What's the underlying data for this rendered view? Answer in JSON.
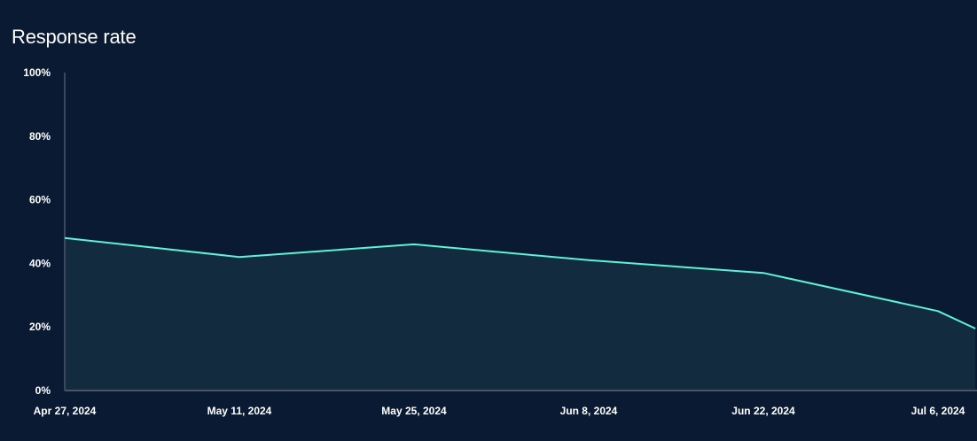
{
  "chart_data": {
    "type": "area",
    "title": "Response rate",
    "xlabel": "",
    "ylabel": "",
    "ylim": [
      0,
      100
    ],
    "y_ticks": [
      "0%",
      "20%",
      "40%",
      "60%",
      "80%",
      "100%"
    ],
    "y_tick_values": [
      0,
      20,
      40,
      60,
      80,
      100
    ],
    "x_ticks": [
      "Apr 27, 2024",
      "May 11, 2024",
      "May 25, 2024",
      "Jun 8, 2024",
      "Jun 22, 2024",
      "Jul 6, 2024"
    ],
    "x_tick_dates": [
      "2024-04-27",
      "2024-05-11",
      "2024-05-25",
      "2024-06-08",
      "2024-06-22",
      "2024-07-06"
    ],
    "x": [
      "2024-04-27",
      "2024-05-11",
      "2024-05-25",
      "2024-06-08",
      "2024-06-22",
      "2024-07-06",
      "2024-07-09"
    ],
    "values": [
      48,
      42,
      46,
      41,
      37,
      25,
      19.5
    ],
    "grid": false,
    "colors": {
      "background": "#0a1a33",
      "line": "#5ef2d6",
      "fill": "#132b3e",
      "axis": "#4a5566"
    }
  }
}
